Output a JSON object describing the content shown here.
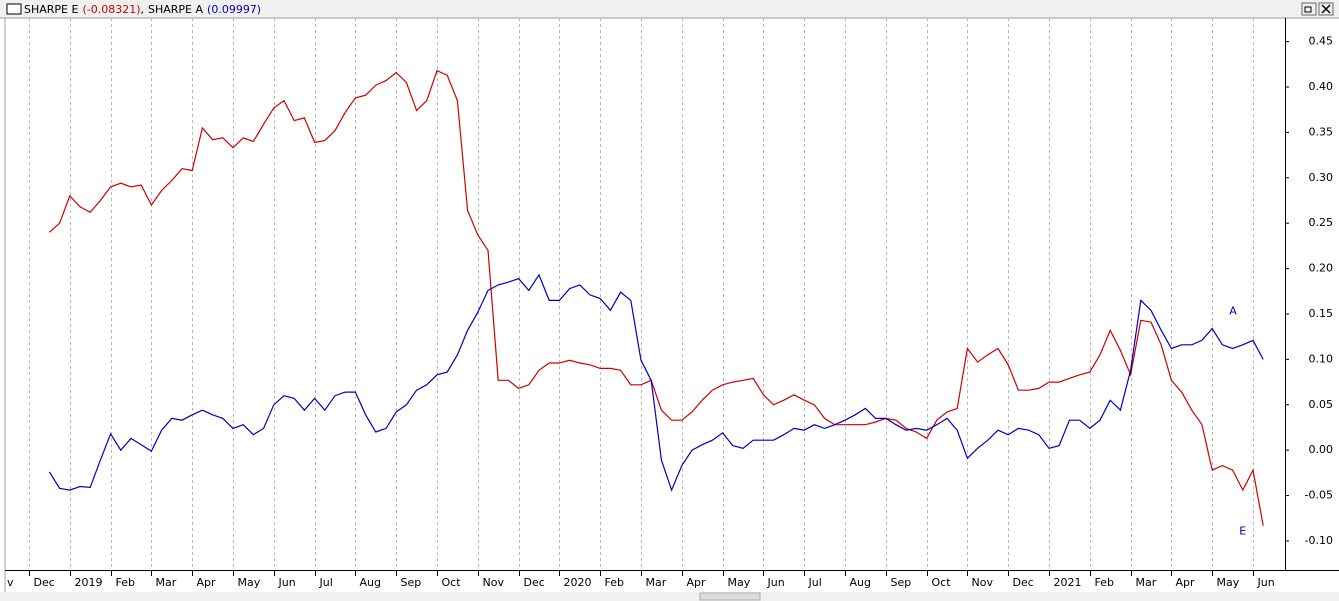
{
  "chart_data": {
    "type": "line",
    "categories": [
      "v",
      null,
      null,
      null,
      "Dec",
      null,
      null,
      null,
      "2019",
      null,
      null,
      null,
      "Feb",
      null,
      null,
      null,
      "Mar",
      null,
      null,
      null,
      "Apr",
      null,
      null,
      null,
      "May",
      null,
      null,
      null,
      "Jun",
      null,
      null,
      null,
      "Jul",
      null,
      null,
      null,
      "Aug",
      null,
      null,
      null,
      "Sep",
      null,
      null,
      null,
      "Oct",
      null,
      null,
      null,
      "Nov",
      null,
      null,
      null,
      "Dec",
      null,
      null,
      null,
      "2020",
      null,
      null,
      null,
      "Feb",
      null,
      null,
      null,
      "Mar",
      null,
      null,
      null,
      "Apr",
      null,
      null,
      null,
      "May",
      null,
      null,
      null,
      "Jun",
      null,
      null,
      null,
      "Jul",
      null,
      null,
      null,
      "Aug",
      null,
      null,
      null,
      "Sep",
      null,
      null,
      null,
      "Oct",
      null,
      null,
      null,
      "Nov",
      null,
      null,
      null,
      "Dec",
      null,
      null,
      null,
      "2021",
      null,
      null,
      null,
      "Feb",
      null,
      null,
      null,
      "Mar",
      null,
      null,
      null,
      "Apr",
      null,
      null,
      null,
      "May",
      null,
      null,
      null,
      "Jun",
      null,
      null,
      null
    ],
    "series": [
      {
        "name": "SHARPE E",
        "value_label": "(-0.08321)",
        "end_label": "E",
        "color": "#d00000",
        "values": [
          null,
          null,
          null,
          null,
          null,
          null,
          0.24,
          0.25,
          0.28,
          0.268,
          0.262,
          0.275,
          0.29,
          0.294,
          0.29,
          0.292,
          0.27,
          0.286,
          0.297,
          0.31,
          0.308,
          0.355,
          0.342,
          0.344,
          0.333,
          0.344,
          0.34,
          0.359,
          0.377,
          0.385,
          0.363,
          0.366,
          0.339,
          0.341,
          0.352,
          0.372,
          0.388,
          0.391,
          0.402,
          0.407,
          0.416,
          0.405,
          0.374,
          0.385,
          0.418,
          0.413,
          0.385,
          0.264,
          0.237,
          0.22,
          0.077,
          0.077,
          0.068,
          0.072,
          0.088,
          0.096,
          0.096,
          0.099,
          0.096,
          0.094,
          0.09,
          0.09,
          0.088,
          0.072,
          0.072,
          0.077,
          0.044,
          0.033,
          0.033,
          0.042,
          0.055,
          0.066,
          0.072,
          0.075,
          0.077,
          0.079,
          0.061,
          0.05,
          0.055,
          0.061,
          0.055,
          0.05,
          0.035,
          0.028,
          0.028,
          0.028,
          0.028,
          0.031,
          0.035,
          0.033,
          0.024,
          0.02,
          0.013,
          0.033,
          0.042,
          0.046,
          0.112,
          0.097,
          0.105,
          0.112,
          0.094,
          0.066,
          0.066,
          0.068,
          0.075,
          0.075,
          0.079,
          0.083,
          0.086,
          0.105,
          0.132,
          0.11,
          0.083,
          0.143,
          0.141,
          0.116,
          0.077,
          0.064,
          0.044,
          0.028,
          -0.022,
          -0.017,
          -0.022,
          -0.044,
          -0.022,
          -0.08321,
          null,
          null
        ]
      },
      {
        "name": "SHARPE A",
        "value_label": "(0.09997)",
        "end_label": "A",
        "color": "#0000c0",
        "values": [
          null,
          null,
          null,
          null,
          null,
          null,
          -0.024,
          -0.042,
          -0.044,
          -0.04,
          -0.041,
          -0.011,
          0.018,
          0,
          0.013,
          0.006,
          -0.001,
          0.022,
          0.035,
          0.033,
          0.039,
          0.044,
          0.039,
          0.035,
          0.024,
          0.028,
          0.017,
          0.024,
          0.05,
          0.06,
          0.057,
          0.044,
          0.057,
          0.044,
          0.06,
          0.064,
          0.064,
          0.039,
          0.02,
          0.024,
          0.042,
          0.05,
          0.066,
          0.072,
          0.083,
          0.086,
          0.105,
          0.132,
          0.152,
          0.176,
          0.182,
          0.185,
          0.189,
          0.176,
          0.193,
          0.165,
          0.165,
          0.178,
          0.182,
          0.171,
          0.167,
          0.154,
          0.174,
          0.165,
          0.099,
          0.077,
          -0.011,
          -0.044,
          -0.017,
          0,
          0.006,
          0.011,
          0.019,
          0.005,
          0.002,
          0.011,
          0.011,
          0.011,
          0.017,
          0.024,
          0.022,
          0.028,
          0.024,
          0.028,
          0.033,
          0.039,
          0.046,
          0.035,
          0.035,
          0.028,
          0.022,
          0.024,
          0.022,
          0.028,
          0.035,
          0.022,
          -0.009,
          0.002,
          0.011,
          0.022,
          0.017,
          0.024,
          0.022,
          0.017,
          0.002,
          0.005,
          0.033,
          0.033,
          0.024,
          0.033,
          0.055,
          0.044,
          0.088,
          0.165,
          0.154,
          0.132,
          0.112,
          0.116,
          0.116,
          0.121,
          0.134,
          0.116,
          0.112,
          0.116,
          0.121,
          0.09997,
          null,
          null
        ]
      }
    ],
    "ylim": [
      -0.132,
      0.476
    ],
    "yticks": [
      {
        "value": 0.45,
        "label": "0.45"
      },
      {
        "value": 0.4,
        "label": "0.40"
      },
      {
        "value": 0.35,
        "label": "0.35"
      },
      {
        "value": 0.3,
        "label": "0.30"
      },
      {
        "value": 0.25,
        "label": "0.25"
      },
      {
        "value": 0.2,
        "label": "0.20"
      },
      {
        "value": 0.15,
        "label": "0.15"
      },
      {
        "value": 0.1,
        "label": "0.10"
      },
      {
        "value": 0.05,
        "label": "0.05"
      },
      {
        "value": 0,
        "label": "0.00"
      },
      {
        "value": -0.05,
        "label": "-0.05"
      },
      {
        "value": -0.1,
        "label": "-0.10"
      }
    ],
    "grid": "vertical-dashed"
  }
}
